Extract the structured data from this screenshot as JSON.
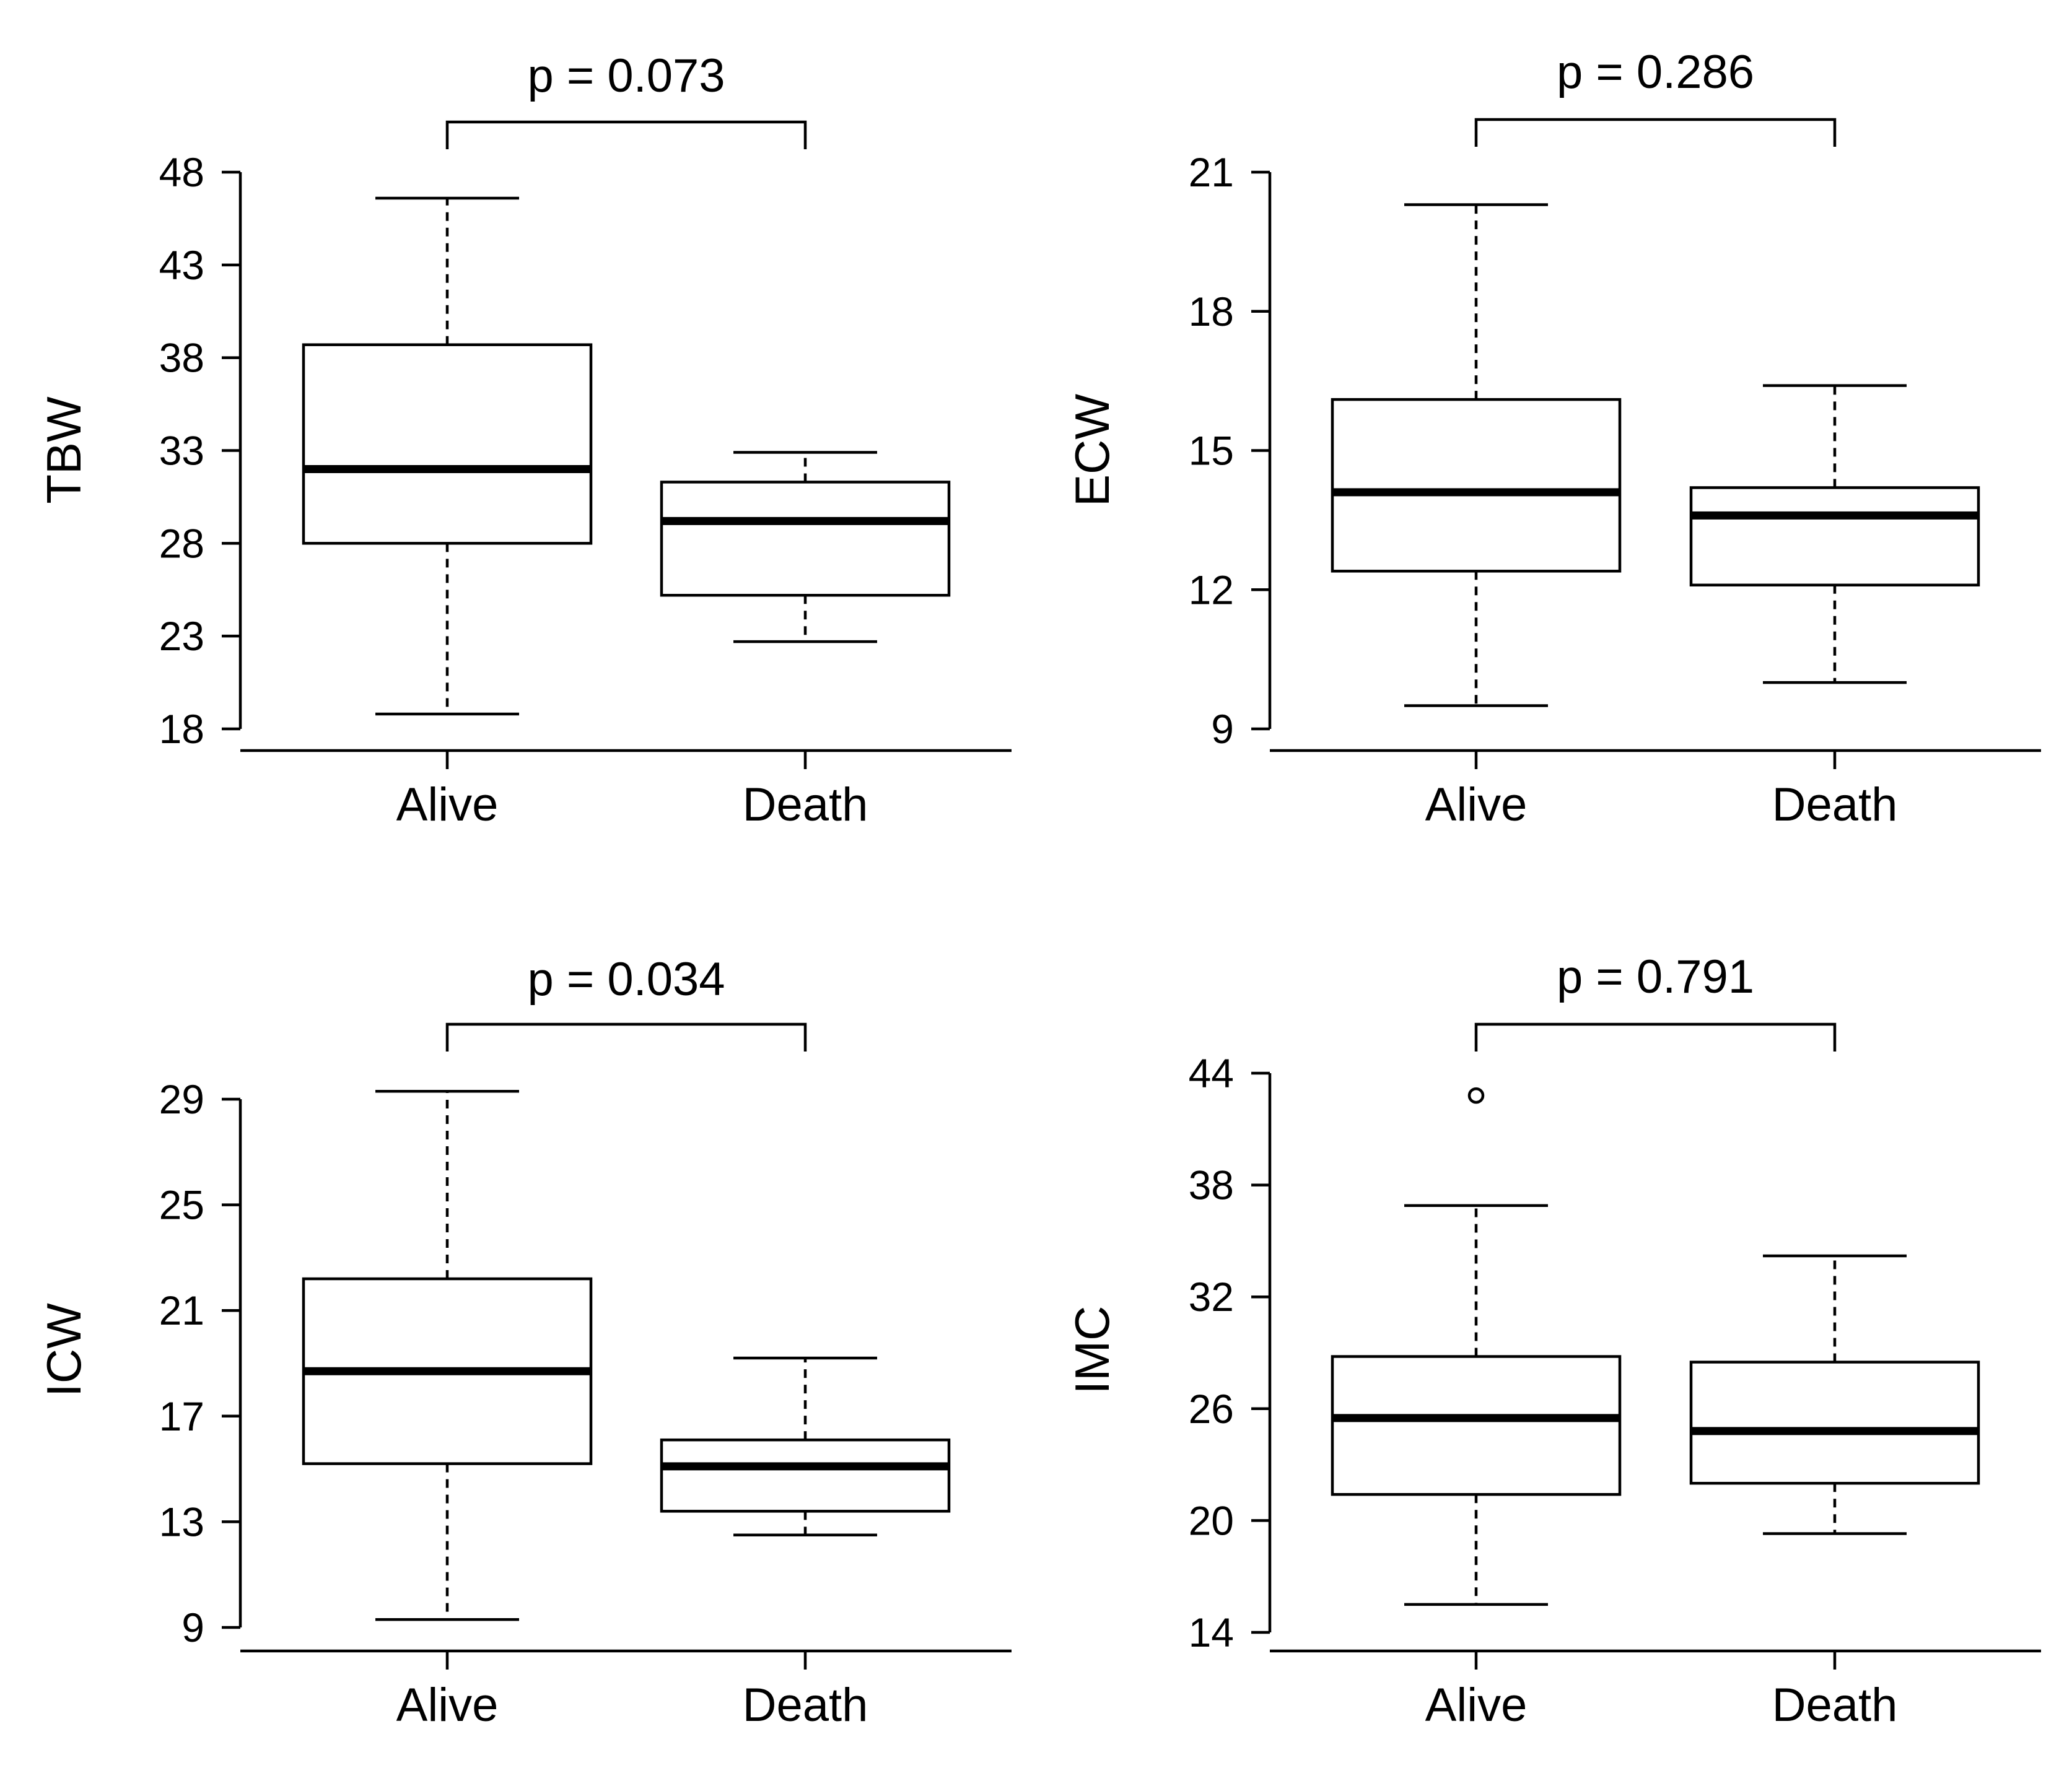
{
  "chart_data": [
    {
      "type": "box",
      "ylabel": "TBW",
      "categories": [
        "Alive",
        "Death"
      ],
      "yticks": [
        18,
        23,
        28,
        33,
        38,
        43,
        48
      ],
      "ylim": [
        16.9,
        48
      ],
      "annotation": "p = 0.073",
      "boxes": [
        {
          "name": "Alive",
          "whisker_low": 18.8,
          "q1": 28.0,
          "median": 32.0,
          "q3": 38.7,
          "whisker_high": 46.6,
          "outliers": []
        },
        {
          "name": "Death",
          "whisker_low": 22.7,
          "q1": 25.2,
          "median": 29.2,
          "q3": 31.3,
          "whisker_high": 32.9,
          "outliers": []
        }
      ]
    },
    {
      "type": "box",
      "ylabel": "ECW",
      "categories": [
        "Alive",
        "Death"
      ],
      "yticks": [
        9,
        12,
        15,
        18,
        21
      ],
      "ylim": [
        8.55,
        21
      ],
      "annotation": "p = 0.286",
      "boxes": [
        {
          "name": "Alive",
          "whisker_low": 9.5,
          "q1": 12.4,
          "median": 14.1,
          "q3": 16.1,
          "whisker_high": 20.3,
          "outliers": []
        },
        {
          "name": "Death",
          "whisker_low": 10.0,
          "q1": 12.1,
          "median": 13.6,
          "q3": 14.2,
          "whisker_high": 16.4,
          "outliers": []
        }
      ]
    },
    {
      "type": "box",
      "ylabel": "ICW",
      "categories": [
        "Alive",
        "Death"
      ],
      "yticks": [
        9,
        13,
        17,
        21,
        25,
        29
      ],
      "ylim": [
        8.2,
        29
      ],
      "annotation": "p = 0.034",
      "boxes": [
        {
          "name": "Alive",
          "whisker_low": 9.3,
          "q1": 15.2,
          "median": 18.7,
          "q3": 22.2,
          "whisker_high": 29.3,
          "outliers": []
        },
        {
          "name": "Death",
          "whisker_low": 12.5,
          "q1": 13.4,
          "median": 15.1,
          "q3": 16.1,
          "whisker_high": 19.2,
          "outliers": []
        }
      ]
    },
    {
      "type": "box",
      "ylabel": "IMC",
      "categories": [
        "Alive",
        "Death"
      ],
      "yticks": [
        14,
        20,
        26,
        32,
        38,
        44
      ],
      "ylim": [
        12.9,
        44
      ],
      "annotation": "p = 0.791",
      "boxes": [
        {
          "name": "Alive",
          "whisker_low": 15.5,
          "q1": 21.4,
          "median": 25.5,
          "q3": 28.8,
          "whisker_high": 36.9,
          "outliers": [
            42.8
          ]
        },
        {
          "name": "Death",
          "whisker_low": 19.3,
          "q1": 22.0,
          "median": 24.8,
          "q3": 28.5,
          "whisker_high": 34.2,
          "outliers": []
        }
      ]
    }
  ]
}
